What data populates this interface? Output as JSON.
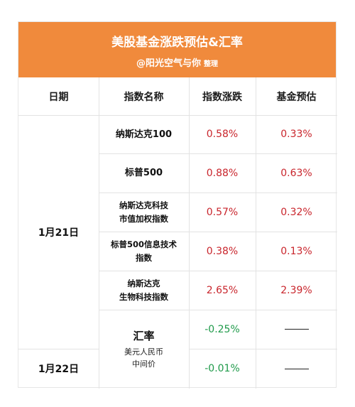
{
  "header": {
    "title": "美股基金涨跌预估&汇率",
    "author": "@阳光空气与你",
    "note": "整理"
  },
  "columns": [
    "日期",
    "指数名称",
    "指数涨跌",
    "基金预估"
  ],
  "dates": [
    "1月21日",
    "1月22日"
  ],
  "rows": [
    {
      "name_lines": [
        "纳斯达克100"
      ],
      "change": "0.58%",
      "fund": "0.33%"
    },
    {
      "name_lines": [
        "标普500"
      ],
      "change": "0.88%",
      "fund": "0.63%"
    },
    {
      "name_lines": [
        "纳斯达克科技",
        "市值加权指数"
      ],
      "change": "0.57%",
      "fund": "0.32%"
    },
    {
      "name_lines": [
        "标普500信息技术",
        "指数"
      ],
      "change": "0.38%",
      "fund": "0.13%"
    },
    {
      "name_lines": [
        "纳斯达克",
        "生物科技指数"
      ],
      "change": "2.65%",
      "fund": "2.39%"
    }
  ],
  "fx": {
    "label": "汇率",
    "sub_lines": [
      "美元人民币",
      "中间价"
    ],
    "changes": [
      "-0.25%",
      "-0.01%"
    ],
    "fund_placeholder": "——"
  },
  "colors": {
    "header": "#f08a3c",
    "up": "#c9252c",
    "down": "#1f9a4a"
  }
}
